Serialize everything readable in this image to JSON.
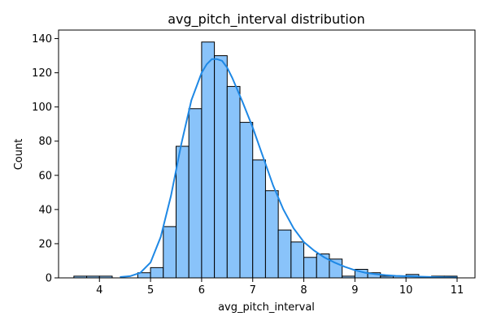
{
  "chart_data": {
    "type": "bar",
    "title": "avg_pitch_interval distribution",
    "xlabel": "avg_pitch_interval",
    "ylabel": "Count",
    "xlim": [
      3.2,
      11.35
    ],
    "ylim": [
      0,
      145
    ],
    "xticks": [
      "4",
      "5",
      "6",
      "7",
      "8",
      "9",
      "10",
      "11"
    ],
    "yticks": [
      "0",
      "20",
      "40",
      "60",
      "80",
      "100",
      "120",
      "140"
    ],
    "bin_width": 0.25,
    "bins": [
      {
        "x0": 3.5,
        "count": 1
      },
      {
        "x0": 3.75,
        "count": 1
      },
      {
        "x0": 4.0,
        "count": 1
      },
      {
        "x0": 4.25,
        "count": 0
      },
      {
        "x0": 4.5,
        "count": 0
      },
      {
        "x0": 4.75,
        "count": 3
      },
      {
        "x0": 5.0,
        "count": 6
      },
      {
        "x0": 5.25,
        "count": 30
      },
      {
        "x0": 5.5,
        "count": 77
      },
      {
        "x0": 5.75,
        "count": 99
      },
      {
        "x0": 6.0,
        "count": 138
      },
      {
        "x0": 6.25,
        "count": 130
      },
      {
        "x0": 6.5,
        "count": 112
      },
      {
        "x0": 6.75,
        "count": 91
      },
      {
        "x0": 7.0,
        "count": 69
      },
      {
        "x0": 7.25,
        "count": 51
      },
      {
        "x0": 7.5,
        "count": 28
      },
      {
        "x0": 7.75,
        "count": 21
      },
      {
        "x0": 8.0,
        "count": 12
      },
      {
        "x0": 8.25,
        "count": 14
      },
      {
        "x0": 8.5,
        "count": 11
      },
      {
        "x0": 8.75,
        "count": 1
      },
      {
        "x0": 9.0,
        "count": 5
      },
      {
        "x0": 9.25,
        "count": 3
      },
      {
        "x0": 9.5,
        "count": 1
      },
      {
        "x0": 9.75,
        "count": 1
      },
      {
        "x0": 10.0,
        "count": 2
      },
      {
        "x0": 10.25,
        "count": 0
      },
      {
        "x0": 10.5,
        "count": 1
      },
      {
        "x0": 10.75,
        "count": 1
      }
    ],
    "kde": {
      "x": [
        4.4,
        4.6,
        4.8,
        5.0,
        5.2,
        5.4,
        5.6,
        5.8,
        6.0,
        6.1,
        6.2,
        6.3,
        6.4,
        6.5,
        6.6,
        6.8,
        7.0,
        7.2,
        7.4,
        7.6,
        7.8,
        8.0,
        8.2,
        8.4,
        8.6,
        8.8,
        9.0,
        9.2,
        9.4,
        9.6,
        9.8,
        10.0,
        10.2,
        10.4,
        10.6,
        10.8,
        11.0
      ],
      "y": [
        0.5,
        1,
        3,
        9,
        24,
        48,
        78,
        104,
        120,
        125,
        128,
        128,
        127,
        123,
        117,
        103,
        88,
        71,
        54,
        40,
        29,
        21,
        16,
        12,
        9,
        6.5,
        4.5,
        3,
        2.2,
        1.6,
        1.2,
        1,
        0.8,
        0.6,
        0.4,
        0.3,
        0.2
      ]
    },
    "grid": false,
    "bar_color": "#89c3fa",
    "bar_edge_color": "#000000",
    "line_color": "#1e88e5"
  }
}
